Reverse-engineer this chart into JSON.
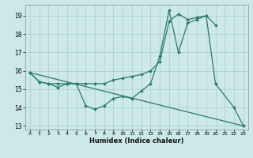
{
  "xlabel": "Humidex (Indice chaleur)",
  "bg_color": "#cce8e8",
  "grid_color": "#aacccc",
  "line_color": "#2a7a6a",
  "xlim": [
    -0.5,
    23.5
  ],
  "ylim": [
    12.8,
    19.6
  ],
  "yticks": [
    13,
    14,
    15,
    16,
    17,
    18,
    19
  ],
  "xticks": [
    0,
    1,
    2,
    3,
    4,
    5,
    6,
    7,
    8,
    9,
    10,
    11,
    12,
    13,
    14,
    15,
    16,
    17,
    18,
    19,
    20,
    21,
    22,
    23
  ],
  "line1_x": [
    0,
    1,
    2,
    3,
    4,
    5,
    6,
    7,
    8,
    9,
    10,
    11,
    12,
    13,
    14,
    15,
    16,
    17,
    18,
    19,
    20,
    22,
    23
  ],
  "line1_y": [
    15.9,
    15.4,
    15.3,
    15.1,
    15.3,
    15.3,
    14.1,
    13.9,
    14.1,
    14.5,
    14.6,
    14.5,
    14.9,
    15.3,
    16.8,
    19.3,
    17.0,
    18.6,
    18.8,
    19.0,
    15.3,
    14.0,
    13.0
  ],
  "line2_x": [
    0,
    1,
    2,
    3,
    4,
    5,
    6,
    7,
    8,
    9,
    10,
    11,
    12,
    13,
    14,
    15,
    16,
    17,
    18,
    19,
    20
  ],
  "line2_y": [
    15.9,
    15.4,
    15.3,
    15.3,
    15.3,
    15.3,
    15.3,
    15.3,
    15.3,
    15.5,
    15.6,
    15.7,
    15.8,
    16.0,
    16.5,
    18.7,
    19.1,
    18.8,
    18.9,
    19.0,
    18.5
  ],
  "line3_x": [
    0,
    23
  ],
  "line3_y": [
    15.9,
    13.0
  ]
}
